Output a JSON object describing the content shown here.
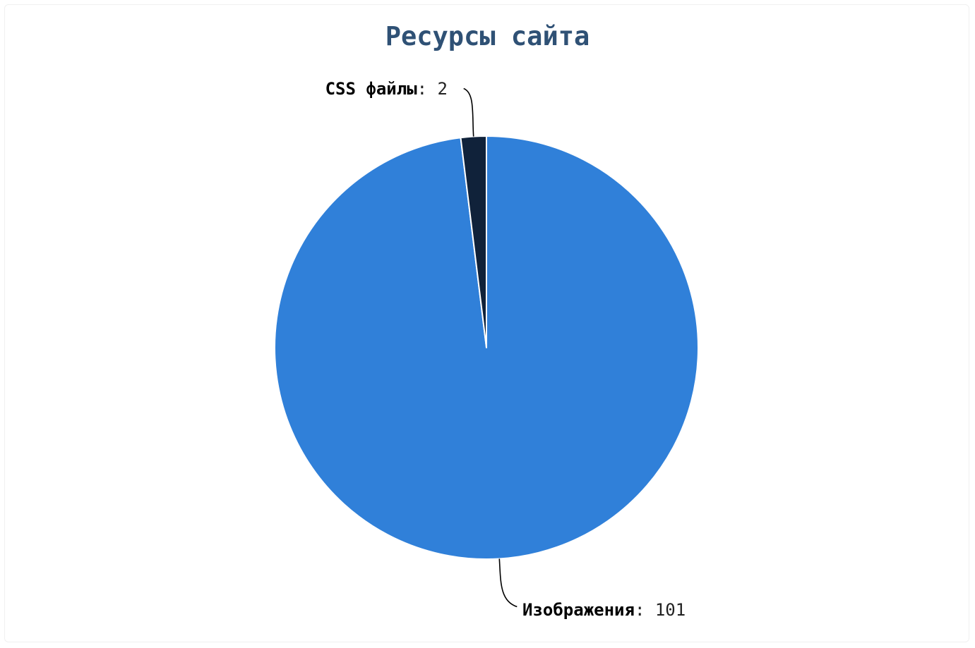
{
  "chart_data": {
    "type": "pie",
    "title": "Ресурсы сайта",
    "slices": [
      {
        "label": "Изображения",
        "value": 101,
        "color": "#3080d9"
      },
      {
        "label": "CSS файлы",
        "value": 2,
        "color": "#10223a"
      }
    ],
    "label_separator": ": ",
    "slice_border_color": "#ffffff",
    "connector_color": "#000000",
    "title_color": "#2f5175"
  }
}
